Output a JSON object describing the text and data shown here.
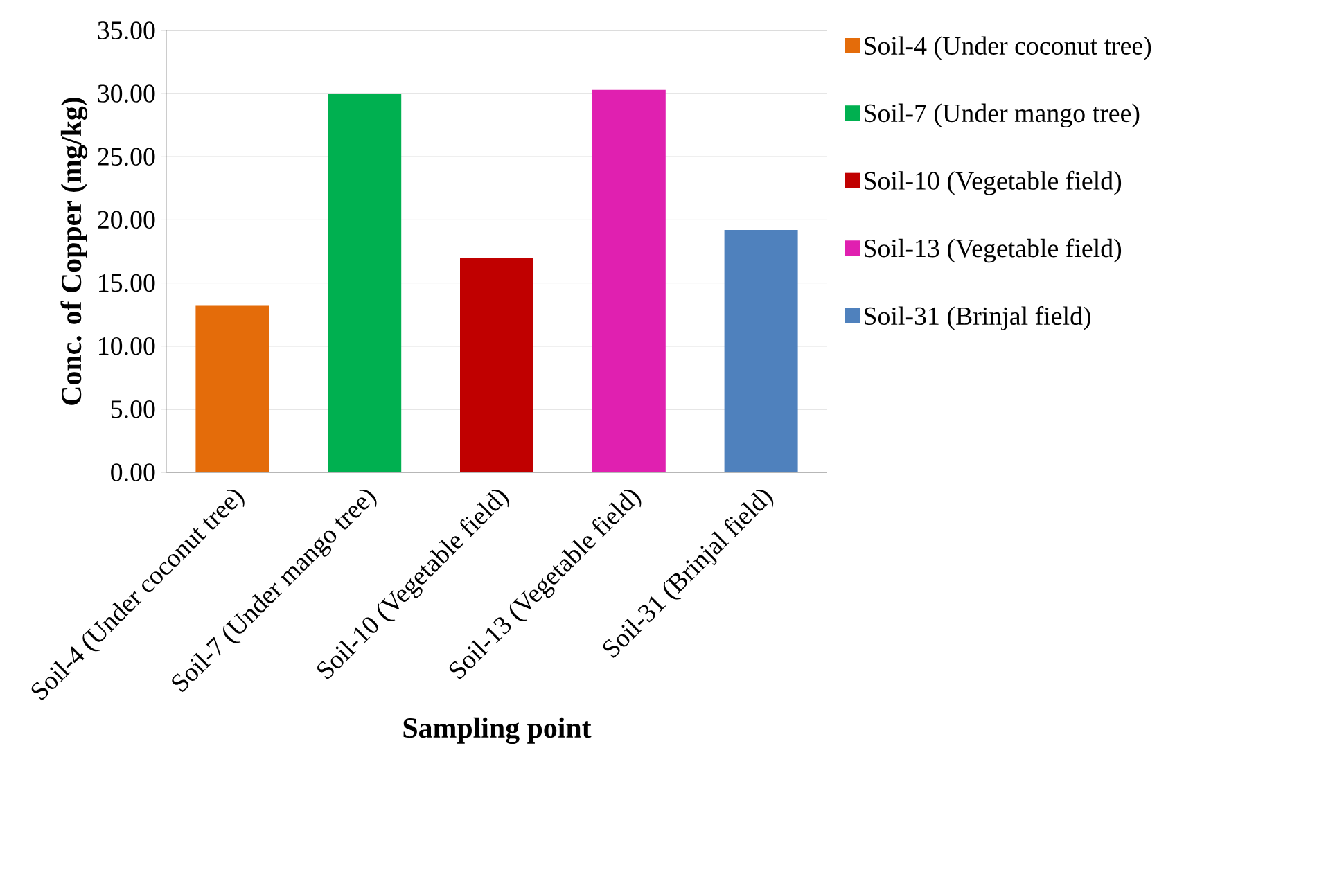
{
  "chart_data": {
    "type": "bar",
    "xlabel": "Sampling point",
    "ylabel": "Conc. of Copper (mg/kg)",
    "categories": [
      "Soil-4 (Under coconut tree)",
      "Soil-7 (Under mango tree)",
      "Soil-10 (Vegetable field)",
      "Soil-13 (Vegetable field)",
      "Soil-31 (Brinjal field)"
    ],
    "series": [
      {
        "name": "Soil-4 (Under coconut tree)",
        "color": "#e46c0a",
        "values": [
          13.2,
          null,
          null,
          null,
          null
        ]
      },
      {
        "name": "Soil-7 (Under mango tree)",
        "color": "#00b050",
        "values": [
          null,
          30.0,
          null,
          null,
          null
        ]
      },
      {
        "name": "Soil-10 (Vegetable field)",
        "color": "#c00000",
        "values": [
          null,
          null,
          17.0,
          null,
          null
        ]
      },
      {
        "name": "Soil-13 (Vegetable field)",
        "color": "#e020b0",
        "values": [
          null,
          null,
          null,
          30.3,
          null
        ]
      },
      {
        "name": "Soil-31 (Brinjal field)",
        "color": "#4f81bd",
        "values": [
          null,
          null,
          null,
          null,
          19.2
        ]
      }
    ],
    "ylim": [
      0,
      35
    ],
    "yticks": [
      {
        "value": 0,
        "label": "0.00"
      },
      {
        "value": 5,
        "label": "5.00"
      },
      {
        "value": 10,
        "label": "10.00"
      },
      {
        "value": 15,
        "label": "15.00"
      },
      {
        "value": 20,
        "label": "20.00"
      },
      {
        "value": 25,
        "label": "25.00"
      },
      {
        "value": 30,
        "label": "30.00"
      },
      {
        "value": 35,
        "label": "35.00"
      }
    ],
    "grid": "y",
    "legend": "right"
  }
}
